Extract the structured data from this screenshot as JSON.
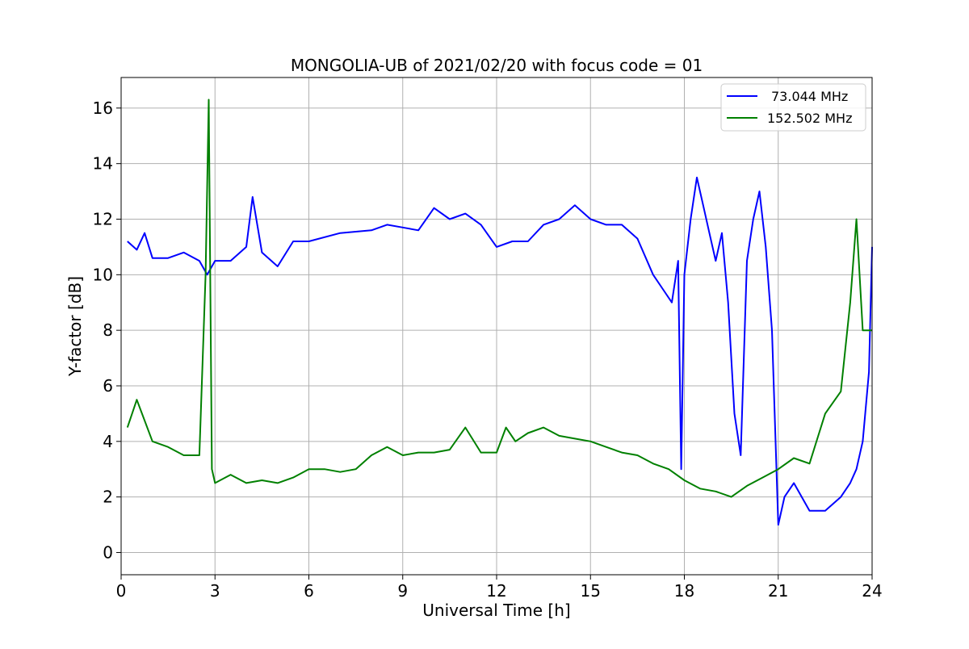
{
  "chart_data": {
    "type": "line",
    "title": "MONGOLIA-UB of 2021/02/20 with focus code = 01",
    "xlabel": "Universal Time [h]",
    "ylabel": "Y-factor [dB]",
    "xlim": [
      0,
      24
    ],
    "ylim": [
      -0.8,
      17.1
    ],
    "xticks": [
      0,
      3,
      6,
      9,
      12,
      15,
      18,
      21,
      24
    ],
    "xtick_labels": [
      "0",
      "3",
      "6",
      "9",
      "12",
      "15",
      "18",
      "21",
      "24"
    ],
    "yticks": [
      0,
      2,
      4,
      6,
      8,
      10,
      12,
      14,
      16
    ],
    "ytick_labels": [
      "0",
      "2",
      "4",
      "6",
      "8",
      "10",
      "12",
      "14",
      "16"
    ],
    "grid": true,
    "legend_position": "upper right",
    "series": [
      {
        "name": "73.044 MHz",
        "color": "#0000ff",
        "x": [
          0.2,
          0.5,
          0.75,
          1.0,
          1.5,
          2.0,
          2.5,
          2.75,
          3.0,
          3.5,
          4.0,
          4.2,
          4.5,
          5.0,
          5.5,
          6.0,
          7.0,
          8.0,
          8.5,
          9.0,
          9.5,
          10.0,
          10.5,
          11.0,
          11.5,
          12.0,
          12.5,
          13.0,
          13.5,
          14.0,
          14.5,
          15.0,
          15.5,
          16.0,
          16.5,
          17.0,
          17.3,
          17.6,
          17.8,
          17.9,
          18.0,
          18.2,
          18.4,
          18.6,
          18.8,
          19.0,
          19.2,
          19.4,
          19.6,
          19.8,
          20.0,
          20.2,
          20.4,
          20.6,
          20.8,
          21.0,
          21.2,
          21.5,
          22.0,
          22.5,
          23.0,
          23.3,
          23.5,
          23.7,
          23.9,
          24.0
        ],
        "values": [
          11.2,
          10.9,
          11.5,
          10.6,
          10.6,
          10.8,
          10.5,
          10.0,
          10.5,
          10.5,
          11.0,
          12.8,
          10.8,
          10.3,
          11.2,
          11.2,
          11.5,
          11.6,
          11.8,
          11.7,
          11.6,
          12.4,
          12.0,
          12.2,
          11.8,
          11.0,
          11.2,
          11.2,
          11.8,
          12.0,
          12.5,
          12.0,
          11.8,
          11.8,
          11.3,
          10.0,
          9.5,
          9.0,
          10.5,
          3.0,
          10.0,
          12.0,
          13.5,
          12.5,
          11.5,
          10.5,
          11.5,
          9.0,
          5.0,
          3.5,
          10.5,
          12.0,
          13.0,
          11.0,
          8.0,
          1.0,
          2.0,
          2.5,
          1.5,
          1.5,
          2.0,
          2.5,
          3.0,
          4.0,
          6.5,
          11.0
        ]
      },
      {
        "name": "152.502 MHz",
        "color": "#008000",
        "x": [
          0.2,
          0.5,
          1.0,
          1.5,
          2.0,
          2.5,
          2.7,
          2.8,
          2.9,
          3.0,
          3.5,
          4.0,
          4.5,
          5.0,
          5.5,
          6.0,
          6.5,
          7.0,
          7.5,
          8.0,
          8.5,
          9.0,
          9.5,
          10.0,
          10.5,
          11.0,
          11.5,
          12.0,
          12.3,
          12.6,
          13.0,
          13.5,
          14.0,
          14.5,
          15.0,
          15.5,
          16.0,
          16.5,
          17.0,
          17.5,
          18.0,
          18.5,
          19.0,
          19.5,
          20.0,
          20.5,
          21.0,
          21.5,
          22.0,
          22.5,
          23.0,
          23.3,
          23.5,
          23.7,
          24.0
        ],
        "values": [
          4.5,
          5.5,
          4.0,
          3.8,
          3.5,
          3.5,
          10.0,
          16.3,
          3.0,
          2.5,
          2.8,
          2.5,
          2.6,
          2.5,
          2.7,
          3.0,
          3.0,
          2.9,
          3.0,
          3.5,
          3.8,
          3.5,
          3.6,
          3.6,
          3.7,
          4.5,
          3.6,
          3.6,
          4.5,
          4.0,
          4.3,
          4.5,
          4.2,
          4.1,
          4.0,
          3.8,
          3.6,
          3.5,
          3.2,
          3.0,
          2.6,
          2.3,
          2.2,
          2.0,
          2.4,
          2.7,
          3.0,
          3.4,
          3.2,
          5.0,
          5.8,
          9.0,
          12.0,
          8.0,
          8.0
        ]
      }
    ]
  }
}
